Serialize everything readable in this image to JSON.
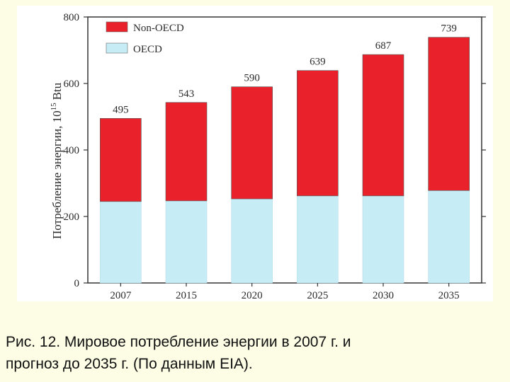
{
  "chart_data": {
    "type": "bar",
    "stacked": true,
    "categories": [
      "2007",
      "2015",
      "2020",
      "2025",
      "2030",
      "2035"
    ],
    "series": [
      {
        "name": "OECD",
        "color": "#c6ecf6",
        "values": [
          245,
          247,
          253,
          262,
          262,
          278
        ]
      },
      {
        "name": "Non-OECD",
        "color": "#e8212b",
        "values": [
          250,
          296,
          337,
          377,
          425,
          461
        ]
      }
    ],
    "totals": [
      495,
      543,
      590,
      639,
      687,
      739
    ],
    "ylabel": "Потребление энергии, 10",
    "ylabel_exp": "15",
    "ylabel_unit": "Btu",
    "ylim": [
      0,
      800
    ],
    "yticks": [
      0,
      200,
      400,
      600,
      800
    ],
    "legend": "top-left",
    "grid": false
  },
  "caption": {
    "line1": "Рис. 12. Мировое потребление энергии в 2007 г. и",
    "line2": "прогноз до 2035 г. (По данным EIA)."
  }
}
